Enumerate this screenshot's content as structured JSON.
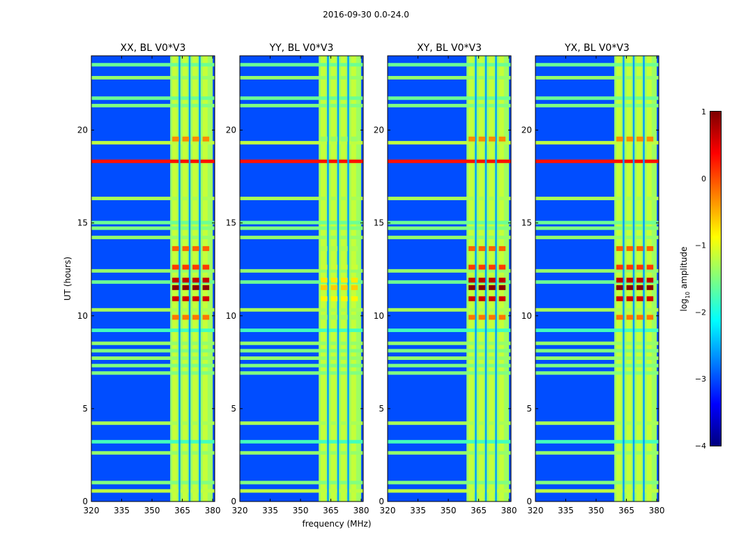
{
  "chart_data": {
    "type": "heatmap",
    "suptitle": "2016-09-30 0.0-24.0",
    "xlabel": "frequency (MHz)",
    "ylabel": "UT (hours)",
    "xlim": [
      320,
      381
    ],
    "ylim": [
      0,
      24
    ],
    "xticks": [
      "320",
      "335",
      "350",
      "365",
      "380"
    ],
    "xtick_values": [
      320,
      335,
      350,
      365,
      380
    ],
    "yticks": [
      "0",
      "5",
      "10",
      "15",
      "20"
    ],
    "ytick_values": [
      0,
      5,
      10,
      15,
      20
    ],
    "panels": [
      {
        "title": "XX, BL V0*V3",
        "transition_strength": 1.0
      },
      {
        "title": "YY, BL V0*V3",
        "transition_strength": 0.6
      },
      {
        "title": "XY, BL V0*V3",
        "transition_strength": 1.0
      },
      {
        "title": "YX, BL V0*V3",
        "transition_strength": 1.0
      }
    ],
    "colorbar": {
      "label_prefix": "log",
      "label_sub": "10",
      "label_suffix": " amplitude",
      "ticks": [
        "1",
        "0",
        "−1",
        "−2",
        "−3",
        "−4"
      ],
      "tick_values": [
        1,
        0,
        -1,
        -2,
        -3,
        -4
      ],
      "vmin": -4,
      "vmax": 1,
      "colormap": "jet"
    },
    "background_level": -3.0,
    "signal_band_mhz": [
      359,
      380
    ],
    "channel_gaps_mhz": [
      363.5,
      368.5,
      373.5
    ],
    "time_bands": [
      {
        "t": 0.55,
        "level": -1.2
      },
      {
        "t": 1.0,
        "level": -1.5
      },
      {
        "t": 2.6,
        "level": -1.4
      },
      {
        "t": 3.2,
        "level": -1.8
      },
      {
        "t": 4.2,
        "level": -1.3
      },
      {
        "t": 6.9,
        "level": -1.5
      },
      {
        "t": 7.3,
        "level": -1.5
      },
      {
        "t": 7.7,
        "level": -1.4
      },
      {
        "t": 8.1,
        "level": -1.5
      },
      {
        "t": 8.5,
        "level": -1.4
      },
      {
        "t": 9.2,
        "level": -1.8
      },
      {
        "t": 10.3,
        "level": -1.3
      },
      {
        "t": 11.8,
        "level": -1.6
      },
      {
        "t": 12.4,
        "level": -1.4
      },
      {
        "t": 14.2,
        "level": -1.4
      },
      {
        "t": 14.7,
        "level": -1.5
      },
      {
        "t": 15.0,
        "level": -1.6
      },
      {
        "t": 16.3,
        "level": -1.3
      },
      {
        "t": 18.3,
        "level": 0.3
      },
      {
        "t": 19.3,
        "level": -1.2
      },
      {
        "t": 21.3,
        "level": -1.5
      },
      {
        "t": 21.7,
        "level": -1.6
      },
      {
        "t": 22.8,
        "level": -1.4
      },
      {
        "t": 23.5,
        "level": -1.6
      }
    ],
    "signal_hotspots": [
      {
        "t": 11.5,
        "level": 0.95
      },
      {
        "t": 11.9,
        "level": 0.7
      },
      {
        "t": 10.9,
        "level": 0.6
      },
      {
        "t": 12.6,
        "level": 0.1
      },
      {
        "t": 13.6,
        "level": -0.1
      },
      {
        "t": 9.9,
        "level": -0.2
      },
      {
        "t": 19.5,
        "level": -0.3
      }
    ]
  }
}
